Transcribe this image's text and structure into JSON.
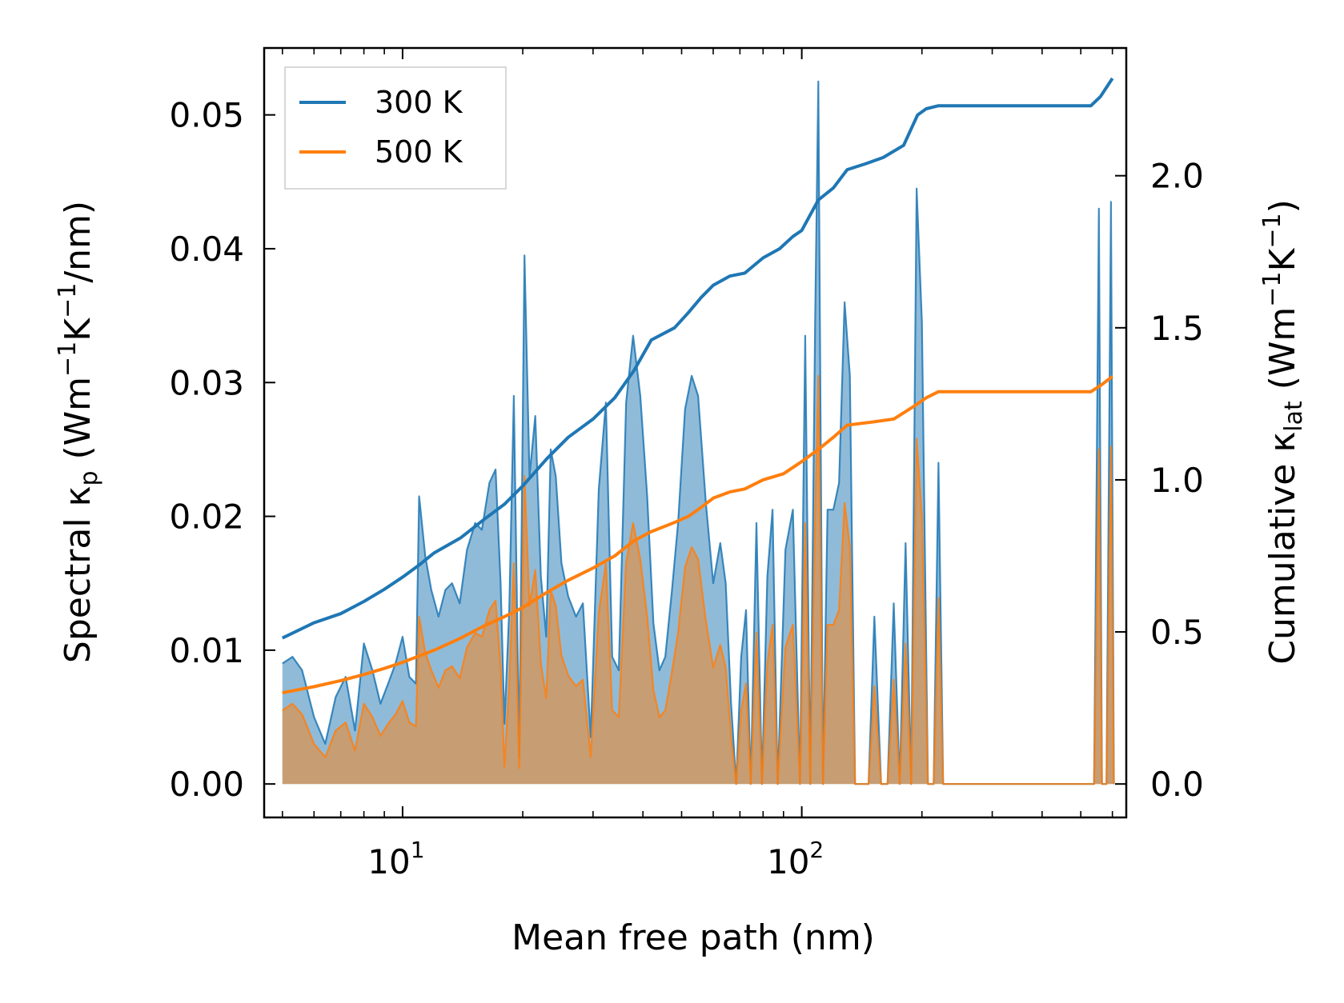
{
  "chart_data": {
    "type": "line",
    "title": "",
    "x_scale": "log",
    "xlabel": "Mean free path (nm)",
    "xlim": [
      4.5,
      650
    ],
    "x_ticks": [
      {
        "value": 10,
        "base": "10",
        "exp": "1"
      },
      {
        "value": 100,
        "base": "10",
        "exp": "2"
      }
    ],
    "ylabel_left": {
      "main": "Spectral κ",
      "sub": "p",
      "unit_pre": " (Wm",
      "sup1": "−1",
      "unit_mid": "K",
      "sup2": "−1",
      "unit_post": "/nm)"
    },
    "ylim_left": [
      -0.0025,
      0.055
    ],
    "yticks_left": [
      "0.00",
      "0.01",
      "0.02",
      "0.03",
      "0.04",
      "0.05"
    ],
    "ylabel_right": {
      "main": "Cumulative κ",
      "sub": "lat",
      "unit_pre": " (Wm",
      "sup1": "−1",
      "unit_mid": "K",
      "sup2": "−1",
      "unit_post": ")"
    },
    "ylim_right": [
      -0.11,
      2.42
    ],
    "yticks_right": [
      "0.0",
      "0.5",
      "1.0",
      "1.5",
      "2.0"
    ],
    "legend_position": "top-left",
    "colors": {
      "300 K": "#1f77b4",
      "500 K": "#ff7f0e"
    },
    "spectral_series": [
      {
        "name": "300 K",
        "axis": "left",
        "points": [
          [
            5,
            0.009
          ],
          [
            5.3,
            0.0095
          ],
          [
            5.6,
            0.0085
          ],
          [
            6.0,
            0.005
          ],
          [
            6.4,
            0.003
          ],
          [
            6.8,
            0.0065
          ],
          [
            7.2,
            0.008
          ],
          [
            7.6,
            0.004
          ],
          [
            8.0,
            0.0105
          ],
          [
            8.4,
            0.0085
          ],
          [
            8.8,
            0.006
          ],
          [
            9.2,
            0.0075
          ],
          [
            9.6,
            0.009
          ],
          [
            10.0,
            0.011
          ],
          [
            10.4,
            0.008
          ],
          [
            10.8,
            0.0075
          ],
          [
            11.0,
            0.0215
          ],
          [
            11.4,
            0.017
          ],
          [
            11.8,
            0.0145
          ],
          [
            12.3,
            0.0125
          ],
          [
            12.8,
            0.0145
          ],
          [
            13.3,
            0.015
          ],
          [
            13.9,
            0.0135
          ],
          [
            14.5,
            0.0175
          ],
          [
            15.2,
            0.0195
          ],
          [
            15.8,
            0.019
          ],
          [
            16.5,
            0.0225
          ],
          [
            17.1,
            0.0235
          ],
          [
            17.6,
            0.015
          ],
          [
            18.0,
            0.0045
          ],
          [
            18.5,
            0.013
          ],
          [
            19.0,
            0.029
          ],
          [
            19.6,
            0.002
          ],
          [
            20.2,
            0.0395
          ],
          [
            20.8,
            0.023
          ],
          [
            21.5,
            0.0275
          ],
          [
            22.2,
            0.0155
          ],
          [
            22.9,
            0.011
          ],
          [
            23.5,
            0.025
          ],
          [
            24.2,
            0.023
          ],
          [
            25.0,
            0.0165
          ],
          [
            26.0,
            0.014
          ],
          [
            27.2,
            0.0125
          ],
          [
            28.3,
            0.0135
          ],
          [
            29.6,
            0.0035
          ],
          [
            31.0,
            0.022
          ],
          [
            32.3,
            0.0285
          ],
          [
            33.5,
            0.0095
          ],
          [
            34.8,
            0.0085
          ],
          [
            36.3,
            0.0285
          ],
          [
            37.8,
            0.0335
          ],
          [
            39.4,
            0.029
          ],
          [
            41.0,
            0.0215
          ],
          [
            42.5,
            0.012
          ],
          [
            44.0,
            0.0085
          ],
          [
            45.5,
            0.0095
          ],
          [
            47.3,
            0.0145
          ],
          [
            49.0,
            0.0195
          ],
          [
            51.0,
            0.028
          ],
          [
            53.0,
            0.0305
          ],
          [
            55.0,
            0.029
          ],
          [
            57.5,
            0.021
          ],
          [
            60.0,
            0.015
          ],
          [
            62.5,
            0.018
          ],
          [
            64.5,
            0.015
          ],
          [
            66.5,
            0.006
          ],
          [
            68.5,
            0.0
          ],
          [
            70.5,
            0.0095
          ],
          [
            72.5,
            0.013
          ],
          [
            74.5,
            0.0
          ],
          [
            77.0,
            0.0195
          ],
          [
            79.5,
            0.0
          ],
          [
            82.0,
            0.0155
          ],
          [
            84.5,
            0.0205
          ],
          [
            87.0,
            0.0
          ],
          [
            91.0,
            0.0175
          ],
          [
            95.0,
            0.0205
          ],
          [
            99.0,
            0.0
          ],
          [
            102.0,
            0.0335
          ],
          [
            105.0,
            0.0
          ],
          [
            108.0,
            0.0345
          ],
          [
            110.0,
            0.0525
          ],
          [
            113.0,
            0.0
          ],
          [
            116.0,
            0.0205
          ],
          [
            120.0,
            0.0205
          ],
          [
            124.0,
            0.0225
          ],
          [
            128.0,
            0.036
          ],
          [
            132.0,
            0.0305
          ],
          [
            136.0,
            0.0
          ],
          [
            141.0,
            0.0
          ],
          [
            147.0,
            0.0
          ],
          [
            152.0,
            0.0125
          ],
          [
            158.0,
            0.0
          ],
          [
            164.0,
            0.0
          ],
          [
            170.0,
            0.0135
          ],
          [
            176.0,
            0.0
          ],
          [
            182.0,
            0.018
          ],
          [
            188.0,
            0.0
          ],
          [
            194.0,
            0.0445
          ],
          [
            200.0,
            0.0345
          ],
          [
            207.0,
            0.0
          ],
          [
            214.0,
            0.0
          ],
          [
            220.0,
            0.024
          ],
          [
            226.0,
            0.0
          ],
          [
            300.0,
            0.0
          ],
          [
            540.0,
            0.0
          ],
          [
            555.0,
            0.043
          ],
          [
            565.0,
            0.0
          ],
          [
            580.0,
            0.0
          ],
          [
            595.0,
            0.0435
          ],
          [
            605.0,
            0.0
          ]
        ]
      },
      {
        "name": "500 K",
        "axis": "left",
        "points": [
          [
            5,
            0.0055
          ],
          [
            5.3,
            0.006
          ],
          [
            5.6,
            0.0052
          ],
          [
            6.0,
            0.003
          ],
          [
            6.4,
            0.002
          ],
          [
            6.8,
            0.004
          ],
          [
            7.2,
            0.0046
          ],
          [
            7.6,
            0.0025
          ],
          [
            8.0,
            0.006
          ],
          [
            8.4,
            0.005
          ],
          [
            8.8,
            0.0036
          ],
          [
            9.2,
            0.0045
          ],
          [
            9.6,
            0.0052
          ],
          [
            10.0,
            0.0062
          ],
          [
            10.4,
            0.0046
          ],
          [
            10.8,
            0.0043
          ],
          [
            11.0,
            0.0125
          ],
          [
            11.4,
            0.0098
          ],
          [
            11.8,
            0.0085
          ],
          [
            12.3,
            0.0072
          ],
          [
            12.8,
            0.0085
          ],
          [
            13.3,
            0.0088
          ],
          [
            13.9,
            0.0079
          ],
          [
            14.5,
            0.0102
          ],
          [
            15.2,
            0.0113
          ],
          [
            15.8,
            0.011
          ],
          [
            16.5,
            0.013
          ],
          [
            17.1,
            0.0137
          ],
          [
            17.6,
            0.0087
          ],
          [
            18.0,
            0.0013
          ],
          [
            18.5,
            0.0075
          ],
          [
            19.0,
            0.0165
          ],
          [
            19.6,
            0.0012
          ],
          [
            20.2,
            0.023
          ],
          [
            20.8,
            0.0133
          ],
          [
            21.5,
            0.016
          ],
          [
            22.2,
            0.009
          ],
          [
            22.9,
            0.0064
          ],
          [
            23.5,
            0.0145
          ],
          [
            24.2,
            0.0133
          ],
          [
            25.0,
            0.0096
          ],
          [
            26.0,
            0.0081
          ],
          [
            27.2,
            0.0073
          ],
          [
            28.3,
            0.0078
          ],
          [
            29.6,
            0.002
          ],
          [
            31.0,
            0.0128
          ],
          [
            32.3,
            0.0165
          ],
          [
            33.5,
            0.0055
          ],
          [
            34.8,
            0.005
          ],
          [
            36.3,
            0.0165
          ],
          [
            37.8,
            0.0195
          ],
          [
            39.4,
            0.0168
          ],
          [
            41.0,
            0.0125
          ],
          [
            42.5,
            0.007
          ],
          [
            44.0,
            0.005
          ],
          [
            45.5,
            0.0055
          ],
          [
            47.3,
            0.0084
          ],
          [
            49.0,
            0.0113
          ],
          [
            51.0,
            0.0162
          ],
          [
            53.0,
            0.0177
          ],
          [
            55.0,
            0.0168
          ],
          [
            57.5,
            0.0122
          ],
          [
            60.0,
            0.0087
          ],
          [
            62.5,
            0.0104
          ],
          [
            64.5,
            0.0087
          ],
          [
            66.5,
            0.0035
          ],
          [
            68.5,
            0.0
          ],
          [
            70.5,
            0.0055
          ],
          [
            72.5,
            0.0075
          ],
          [
            74.5,
            0.0
          ],
          [
            77.0,
            0.0113
          ],
          [
            79.5,
            0.0
          ],
          [
            82.0,
            0.009
          ],
          [
            84.5,
            0.0119
          ],
          [
            87.0,
            0.0
          ],
          [
            91.0,
            0.0102
          ],
          [
            95.0,
            0.0119
          ],
          [
            99.0,
            0.0
          ],
          [
            102.0,
            0.0195
          ],
          [
            105.0,
            0.0
          ],
          [
            108.0,
            0.02
          ],
          [
            110.0,
            0.0305
          ],
          [
            113.0,
            0.0
          ],
          [
            116.0,
            0.0119
          ],
          [
            120.0,
            0.0119
          ],
          [
            124.0,
            0.013
          ],
          [
            128.0,
            0.021
          ],
          [
            132.0,
            0.0177
          ],
          [
            136.0,
            0.0
          ],
          [
            141.0,
            0.0
          ],
          [
            147.0,
            0.0
          ],
          [
            152.0,
            0.0073
          ],
          [
            158.0,
            0.0
          ],
          [
            164.0,
            0.0
          ],
          [
            170.0,
            0.0078
          ],
          [
            176.0,
            0.0
          ],
          [
            182.0,
            0.0105
          ],
          [
            188.0,
            0.0
          ],
          [
            194.0,
            0.0258
          ],
          [
            200.0,
            0.02
          ],
          [
            207.0,
            0.0
          ],
          [
            214.0,
            0.0
          ],
          [
            220.0,
            0.0139
          ],
          [
            226.0,
            0.0
          ],
          [
            300.0,
            0.0
          ],
          [
            540.0,
            0.0
          ],
          [
            555.0,
            0.025
          ],
          [
            565.0,
            0.0
          ],
          [
            580.0,
            0.0
          ],
          [
            595.0,
            0.0252
          ],
          [
            605.0,
            0.0
          ]
        ]
      }
    ],
    "cumulative_series": [
      {
        "name": "300 K",
        "axis": "right",
        "points": [
          [
            5,
            0.48
          ],
          [
            6,
            0.53
          ],
          [
            7,
            0.56
          ],
          [
            8,
            0.6
          ],
          [
            9,
            0.64
          ],
          [
            10,
            0.68
          ],
          [
            11,
            0.72
          ],
          [
            12,
            0.76
          ],
          [
            14,
            0.81
          ],
          [
            16,
            0.87
          ],
          [
            18,
            0.92
          ],
          [
            20,
            0.98
          ],
          [
            23,
            1.07
          ],
          [
            26,
            1.14
          ],
          [
            30,
            1.2
          ],
          [
            34,
            1.27
          ],
          [
            38,
            1.36
          ],
          [
            42,
            1.46
          ],
          [
            48,
            1.5
          ],
          [
            52,
            1.55
          ],
          [
            56,
            1.6
          ],
          [
            60,
            1.64
          ],
          [
            66,
            1.67
          ],
          [
            72,
            1.68
          ],
          [
            80,
            1.73
          ],
          [
            88,
            1.76
          ],
          [
            95,
            1.8
          ],
          [
            100,
            1.82
          ],
          [
            110,
            1.92
          ],
          [
            120,
            1.96
          ],
          [
            130,
            2.02
          ],
          [
            145,
            2.04
          ],
          [
            160,
            2.06
          ],
          [
            180,
            2.1
          ],
          [
            195,
            2.2
          ],
          [
            205,
            2.22
          ],
          [
            220,
            2.23
          ],
          [
            300,
            2.23
          ],
          [
            530,
            2.23
          ],
          [
            560,
            2.26
          ],
          [
            600,
            2.32
          ]
        ]
      },
      {
        "name": "500 K",
        "axis": "right",
        "points": [
          [
            5,
            0.3
          ],
          [
            6,
            0.32
          ],
          [
            7,
            0.34
          ],
          [
            8,
            0.36
          ],
          [
            9,
            0.38
          ],
          [
            10,
            0.4
          ],
          [
            12,
            0.44
          ],
          [
            14,
            0.48
          ],
          [
            16,
            0.52
          ],
          [
            18,
            0.55
          ],
          [
            20,
            0.58
          ],
          [
            23,
            0.63
          ],
          [
            26,
            0.67
          ],
          [
            30,
            0.71
          ],
          [
            34,
            0.75
          ],
          [
            38,
            0.8
          ],
          [
            42,
            0.83
          ],
          [
            48,
            0.86
          ],
          [
            52,
            0.88
          ],
          [
            56,
            0.91
          ],
          [
            60,
            0.94
          ],
          [
            66,
            0.96
          ],
          [
            72,
            0.97
          ],
          [
            80,
            1.0
          ],
          [
            90,
            1.02
          ],
          [
            100,
            1.06
          ],
          [
            110,
            1.1
          ],
          [
            120,
            1.14
          ],
          [
            130,
            1.18
          ],
          [
            150,
            1.19
          ],
          [
            170,
            1.2
          ],
          [
            190,
            1.24
          ],
          [
            205,
            1.27
          ],
          [
            220,
            1.29
          ],
          [
            300,
            1.29
          ],
          [
            530,
            1.29
          ],
          [
            560,
            1.31
          ],
          [
            600,
            1.34
          ]
        ]
      }
    ]
  }
}
